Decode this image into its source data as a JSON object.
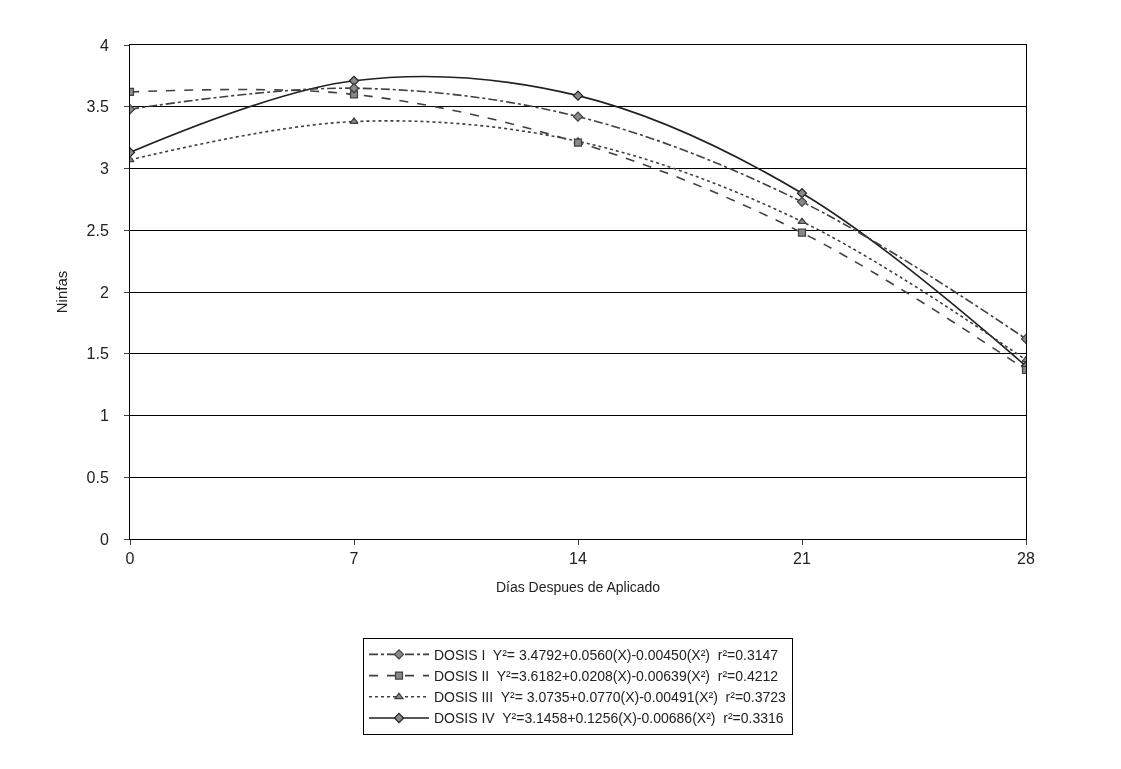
{
  "chart_data": {
    "type": "line",
    "xlabel": "Días Despues de Aplicado",
    "ylabel": "Ninfas",
    "x": [
      0,
      7,
      14,
      21,
      28
    ],
    "series": [
      {
        "name": "DOSIS I  Y²= 3.4792+0.0560(X)-0.00450(X²)  r²=0.3147",
        "color": "#404040",
        "marker": "diamond",
        "line_style": "dashdot",
        "values": [
          3.48,
          3.65,
          3.42,
          2.73,
          1.62
        ]
      },
      {
        "name": "DOSIS II  Y²=3.6182+0.0208(X)-0.00639(X²)  r²=0.4212",
        "color": "#404040",
        "marker": "square",
        "line_style": "dashed",
        "values": [
          3.62,
          3.6,
          3.21,
          2.48,
          1.37
        ]
      },
      {
        "name": "DOSIS III  Y²= 3.0735+0.0770(X)-0.00491(X²)  r²=0.3723",
        "color": "#404040",
        "marker": "triangle",
        "line_style": "dotted",
        "values": [
          3.07,
          3.38,
          3.22,
          2.57,
          1.45
        ]
      },
      {
        "name": "DOSIS IV  Y²=3.1458+0.1256(X)-0.00686(X²)  r²=0.3316",
        "color": "#202020",
        "marker": "diamond",
        "line_style": "solid",
        "values": [
          3.13,
          3.71,
          3.59,
          2.8,
          1.4
        ]
      }
    ],
    "xlim": [
      0,
      28
    ],
    "xticks": [
      0,
      7,
      14,
      21,
      28
    ],
    "ylim": [
      0,
      4
    ],
    "yticks": [
      0,
      0.5,
      1,
      1.5,
      2,
      2.5,
      3,
      3.5,
      4
    ],
    "grid": "y",
    "legend": "bottom"
  }
}
